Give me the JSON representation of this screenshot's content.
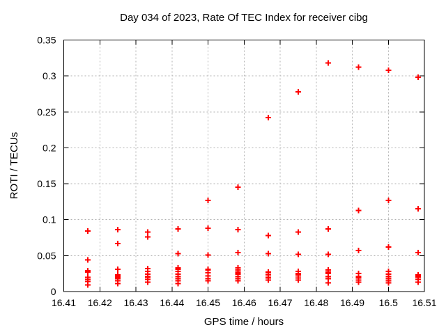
{
  "chart_data": {
    "type": "scatter",
    "title": "Day 034 of 2023, Rate Of TEC Index for receiver cibg",
    "xlabel": "GPS time / hours",
    "ylabel": "ROTI / TECUs",
    "xlim": [
      16.41,
      16.51
    ],
    "ylim": [
      0,
      0.35
    ],
    "grid": true,
    "legend": "none",
    "background_color": "#ffffff",
    "axis_color": "#000000",
    "grid_color": "#b0b0b0",
    "marker": "plus",
    "marker_color": "#ff0000",
    "xticks": {
      "values": [
        16.41,
        16.42,
        16.43,
        16.44,
        16.45,
        16.46,
        16.47,
        16.48,
        16.49,
        16.5,
        16.51
      ],
      "labels": [
        "16.41",
        "16.42",
        "16.43",
        "16.44",
        "16.45",
        "16.46",
        "16.47",
        "16.48",
        "16.49",
        "16.5",
        "16.51"
      ]
    },
    "yticks": {
      "values": [
        0,
        0.05,
        0.1,
        0.15,
        0.2,
        0.25,
        0.3,
        0.35
      ],
      "labels": [
        "0",
        "0.05",
        "0.1",
        "0.15",
        "0.2",
        "0.25",
        "0.3",
        "0.35"
      ]
    },
    "series": [
      {
        "name": "ROTI",
        "color": "#ff0000",
        "marker": "plus",
        "groups": [
          {
            "x": 16.4167,
            "y": [
              0.084,
              0.044,
              0.029,
              0.027,
              0.02,
              0.017,
              0.014,
              0.009
            ]
          },
          {
            "x": 16.425,
            "y": [
              0.086,
              0.067,
              0.031,
              0.023,
              0.022,
              0.02,
              0.018,
              0.015,
              0.011
            ]
          },
          {
            "x": 16.4333,
            "y": [
              0.083,
              0.076,
              0.032,
              0.028,
              0.024,
              0.021,
              0.02,
              0.017,
              0.013
            ]
          },
          {
            "x": 16.4417,
            "y": [
              0.087,
              0.053,
              0.033,
              0.031,
              0.028,
              0.024,
              0.021,
              0.018,
              0.015,
              0.011
            ]
          },
          {
            "x": 16.45,
            "y": [
              0.127,
              0.088,
              0.051,
              0.031,
              0.03,
              0.026,
              0.022,
              0.018,
              0.015
            ]
          },
          {
            "x": 16.4583,
            "y": [
              0.145,
              0.086,
              0.054,
              0.033,
              0.03,
              0.027,
              0.025,
              0.024,
              0.021,
              0.018,
              0.015
            ]
          },
          {
            "x": 16.4667,
            "y": [
              0.242,
              0.078,
              0.053,
              0.027,
              0.026,
              0.023,
              0.02,
              0.019,
              0.016
            ]
          },
          {
            "x": 16.475,
            "y": [
              0.278,
              0.083,
              0.052,
              0.028,
              0.025,
              0.024,
              0.022,
              0.019,
              0.016
            ]
          },
          {
            "x": 16.4833,
            "y": [
              0.318,
              0.087,
              0.052,
              0.03,
              0.027,
              0.025,
              0.021,
              0.018,
              0.012
            ]
          },
          {
            "x": 16.4917,
            "y": [
              0.312,
              0.113,
              0.057,
              0.025,
              0.021,
              0.019,
              0.016,
              0.013
            ]
          },
          {
            "x": 16.5,
            "y": [
              0.308,
              0.127,
              0.062,
              0.028,
              0.024,
              0.021,
              0.018,
              0.015,
              0.012
            ]
          },
          {
            "x": 16.5083,
            "y": [
              0.298,
              0.115,
              0.054,
              0.023,
              0.022,
              0.02,
              0.017,
              0.013
            ]
          }
        ]
      }
    ]
  }
}
